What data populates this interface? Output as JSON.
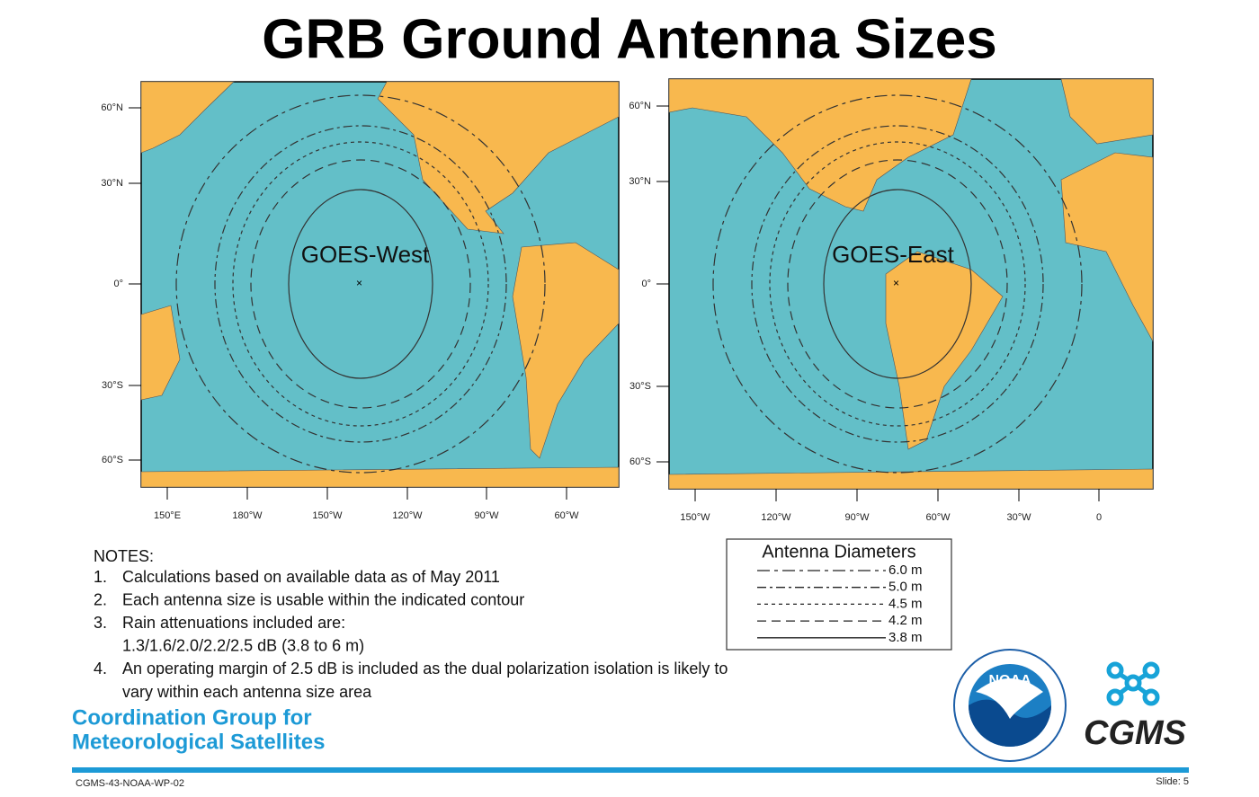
{
  "title": "GRB Ground Antenna Sizes",
  "maps": [
    {
      "label": "GOES-West",
      "lat_labels": [
        "60°N",
        "30°N",
        "0°",
        "30°S",
        "60°S"
      ],
      "lon_labels": [
        "150°E",
        "180°W",
        "150°W",
        "120°W",
        "90°W",
        "60°W"
      ]
    },
    {
      "label": "GOES-East",
      "lat_labels": [
        "60°N",
        "30°N",
        "0°",
        "30°S",
        "60°S"
      ],
      "lon_labels": [
        "150°W",
        "120°W",
        "90°W",
        "60°W",
        "30°W",
        "0"
      ]
    }
  ],
  "legend": {
    "title": "Antenna Diameters",
    "items": [
      "6.0 m",
      "5.0 m",
      "4.5 m",
      "4.2 m",
      "3.8 m"
    ]
  },
  "notes": {
    "heading": "NOTES:",
    "items": [
      {
        "number": "1.",
        "lines": [
          "Calculations based on available data as of May 2011"
        ]
      },
      {
        "number": "2.",
        "lines": [
          "Each antenna size is usable within the indicated contour"
        ]
      },
      {
        "number": "3.",
        "lines": [
          "Rain attenuations included are:",
          "1.3/1.6/2.0/2.2/2.5 dB (3.8 to 6 m)"
        ]
      },
      {
        "number": "4.",
        "lines": [
          "An operating margin of 2.5 dB is included as the dual polarization isolation is likely to",
          "vary within each antenna size area"
        ]
      }
    ]
  },
  "org": [
    "Coordination Group for",
    "Meteorological Satellites"
  ],
  "logos": {
    "noaa": "NOAA",
    "cgms": "CGMS"
  },
  "footer": {
    "doc_id": "CGMS-43-NOAA-WP-02",
    "slide": "Slide: 5"
  }
}
